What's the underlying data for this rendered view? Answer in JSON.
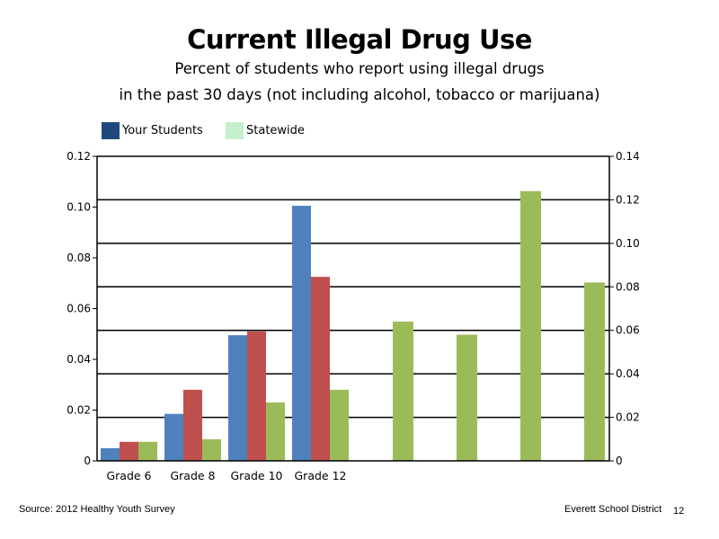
{
  "page_number": "12",
  "footer": {
    "source": "Source: 2012 Healthy Youth Survey",
    "organization": "Everett School District"
  },
  "chart_data": {
    "type": "bar",
    "title": "Current Illegal Drug Use",
    "subtitle_line1": "Percent of students who report using illegal drugs",
    "subtitle_line2": "in the past 30 days (not including alcohol, tobacco or marijuana)",
    "legend": [
      {
        "label": "Your Students",
        "color": "#1f497d"
      },
      {
        "label": "Statewide",
        "color": "#c6efce"
      }
    ],
    "legend_placement": "top-left",
    "categories": [
      "Grade 6",
      "Grade 8",
      "Grade 10",
      "Grade 12"
    ],
    "series": [
      {
        "color": "#4f81bd",
        "axis": "left",
        "values": [
          0.005,
          0.0185,
          0.0495,
          0.1005
        ]
      },
      {
        "color": "#c0504d",
        "axis": "left",
        "values": [
          0.0075,
          0.028,
          0.051,
          0.0725
        ]
      },
      {
        "color": "#9bbb59",
        "axis": "left",
        "values": [
          0.0075,
          0.0085,
          0.023,
          0.028
        ]
      }
    ],
    "extra_bars": {
      "color": "#9bbb59",
      "axis": "right",
      "values": [
        0.064,
        0.058,
        0.124,
        0.082
      ]
    },
    "y_left": {
      "min": 0,
      "max": 0.12,
      "ticks": [
        "0",
        "0.02",
        "0.04",
        "0.06",
        "0.08",
        "0.10",
        "0.12"
      ]
    },
    "y_right": {
      "min": 0,
      "max": 0.14,
      "ticks": [
        "0",
        "0.02",
        "0.04",
        "0.06",
        "0.08",
        "0.10",
        "0.12",
        "0.14"
      ]
    },
    "grid": true
  }
}
